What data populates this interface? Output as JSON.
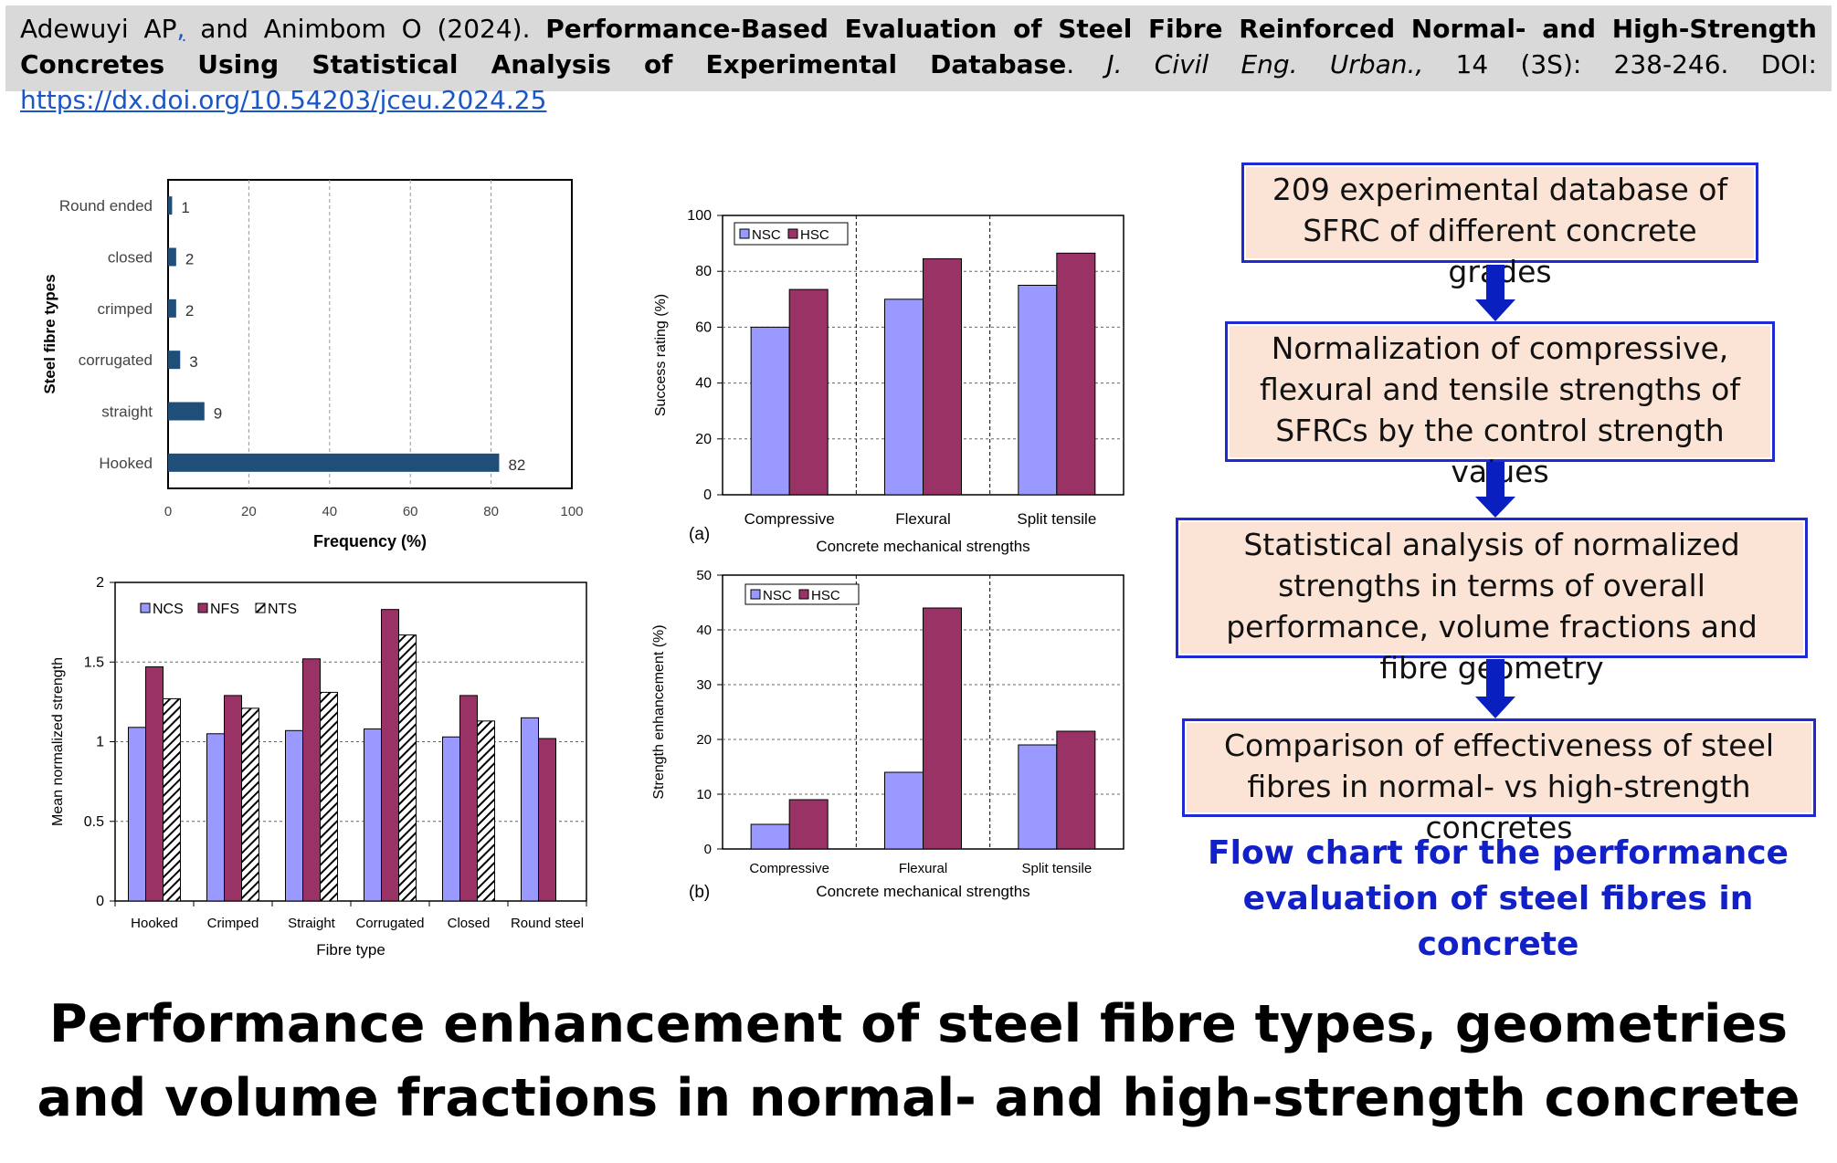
{
  "citation": {
    "authors": "Adewuyi AP",
    "comma": ",",
    "and_part": " and Animbom O (2024). ",
    "title": "Performance-Based Evaluation of Steel Fibre Reinforced Normal- and High-Strength Concretes Using Statistical Analysis of Experimental Database",
    "period": ". ",
    "journal": "J. Civil Eng. Urban.,",
    "volume": " 14 (3S): 238-246. DOI: ",
    "doi": "https://dx.doi.org/10.54203/jceu.2024.25"
  },
  "colors": {
    "nsc": "#9999ff",
    "hsc": "#993366",
    "navy_bar": "#1f4e79",
    "flow_border": "#1f2bd0",
    "flow_fill": "#fbe4d5",
    "arrow": "#0a1fc0",
    "caption": "#1220c8"
  },
  "chart_data": [
    {
      "type": "bar",
      "orientation": "horizontal",
      "categories": [
        "Round ended",
        "closed",
        "crimped",
        "corrugated",
        "straight",
        "Hooked"
      ],
      "values": [
        1,
        2,
        2,
        3,
        9,
        82
      ],
      "xlabel": "Frequency (%)",
      "ylabel": "Steel fibre types",
      "xlim": [
        0,
        100
      ],
      "xticks": [
        "0",
        "20",
        "40",
        "60",
        "80",
        "100"
      ],
      "grid": "vertical dashed"
    },
    {
      "type": "bar",
      "categories": [
        "Compressive",
        "Flexural",
        "Split tensile"
      ],
      "series": [
        {
          "name": "NSC",
          "values": [
            60,
            70,
            75
          ]
        },
        {
          "name": "HSC",
          "values": [
            73.5,
            84.5,
            86.5
          ]
        }
      ],
      "ylabel": "Success rating (%)",
      "xlabel": "Concrete mechanical strengths",
      "ylim": [
        0,
        100
      ],
      "yticks": [
        "0",
        "20",
        "40",
        "60",
        "80",
        "100"
      ],
      "panel_label": "(a)",
      "legend": "top-left"
    },
    {
      "type": "bar",
      "categories": [
        "Compressive",
        "Flexural",
        "Split tensile"
      ],
      "series": [
        {
          "name": "NSC",
          "values": [
            4.5,
            14,
            19
          ]
        },
        {
          "name": "HSC",
          "values": [
            9,
            44,
            21.5
          ]
        }
      ],
      "ylabel": "Strength enhancement (%)",
      "xlabel": "Concrete mechanical strengths",
      "ylim": [
        0,
        50
      ],
      "yticks": [
        "0",
        "10",
        "20",
        "30",
        "40",
        "50"
      ],
      "panel_label": "(b)",
      "legend": "top-left"
    },
    {
      "type": "bar",
      "categories": [
        "Hooked",
        "Crimped",
        "Straight",
        "Corrugated",
        "Closed",
        "Round steel"
      ],
      "series": [
        {
          "name": "NCS",
          "values": [
            1.09,
            1.05,
            1.07,
            1.08,
            1.03,
            1.15
          ]
        },
        {
          "name": "NFS",
          "values": [
            1.47,
            1.29,
            1.52,
            1.83,
            1.29,
            1.02
          ]
        },
        {
          "name": "NTS",
          "values": [
            1.27,
            1.21,
            1.31,
            1.67,
            1.13,
            null
          ]
        }
      ],
      "ylabel": "Mean normalized strength",
      "xlabel": "Fibre type",
      "ylim": [
        0,
        2
      ],
      "yticks": [
        "0",
        "0.5",
        "1",
        "1.5",
        "2"
      ],
      "legend": "top-left"
    }
  ],
  "flowchart": {
    "boxes": [
      "209 experimental database of SFRC of different concrete grades",
      "Normalization of compressive, flexural and tensile strengths of SFRCs by the control strength values",
      "Statistical analysis of normalized strengths in terms of overall performance, volume fractions and fibre geometry",
      "Comparison of effectiveness of steel fibres in normal- vs high-strength concretes"
    ],
    "caption": "Flow chart for the performance evaluation of steel fibres in concrete"
  },
  "main_title": "Performance enhancement of steel fibre types, geometries and volume fractions in normal- and high-strength concrete"
}
